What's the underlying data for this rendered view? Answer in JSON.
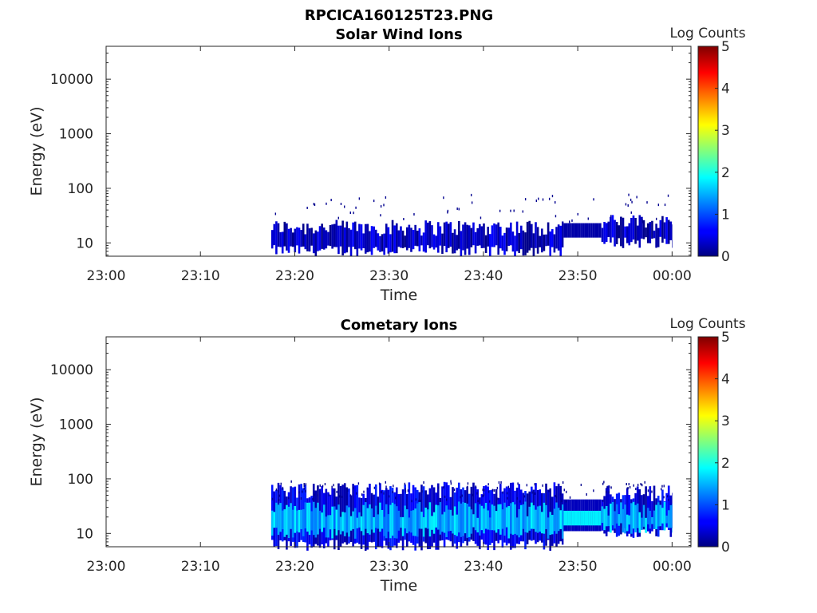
{
  "figure": {
    "title": "RPCICA160125T23.PNG"
  },
  "chart_data": [
    {
      "type": "heatmap",
      "title": "Solar Wind Ions",
      "xlabel": "Time",
      "ylabel": "Energy (eV)",
      "x_ticks": [
        "23:00",
        "23:10",
        "23:20",
        "23:30",
        "23:40",
        "23:50",
        "00:00"
      ],
      "x_range": [
        "23:00",
        "00:02"
      ],
      "y_ticks": [
        10,
        100,
        1000,
        10000
      ],
      "y_scale": "log",
      "y_range": [
        5.7,
        40000
      ],
      "colorbar": {
        "label": "Log Counts",
        "ticks": [
          0,
          1,
          2,
          3,
          4,
          5
        ],
        "range": [
          0,
          5
        ],
        "colormap": "jet"
      },
      "data_start": "23:17.5",
      "data_end": "00:00",
      "bands": [
        {
          "t_start": "23:17.5",
          "t_end": "23:48.5",
          "e_low": 7,
          "e_high": 24,
          "log_counts": 0.3
        },
        {
          "t_start": "23:48.5",
          "t_end": "23:52.5",
          "e_low": 12.5,
          "e_high": 23,
          "log_counts": 0.2
        },
        {
          "t_start": "23:52.5",
          "t_end": "00:00",
          "e_low": 10,
          "e_high": 30,
          "log_counts": 0.3
        }
      ]
    },
    {
      "type": "heatmap",
      "title": "Cometary Ions",
      "xlabel": "Time",
      "ylabel": "Energy (eV)",
      "x_ticks": [
        "23:00",
        "23:10",
        "23:20",
        "23:30",
        "23:40",
        "23:50",
        "00:00"
      ],
      "x_range": [
        "23:00",
        "00:02"
      ],
      "y_ticks": [
        10,
        100,
        1000,
        10000
      ],
      "y_scale": "log",
      "y_range": [
        5.7,
        40000
      ],
      "colorbar": {
        "label": "Log Counts",
        "ticks": [
          0,
          1,
          2,
          3,
          4,
          5
        ],
        "range": [
          0,
          5
        ],
        "colormap": "jet"
      },
      "data_start": "23:17.5",
      "data_end": "00:00",
      "bands": [
        {
          "t_start": "23:17.5",
          "t_end": "23:48.5",
          "e_low": 6,
          "e_high": 80,
          "log_counts": 0.5
        },
        {
          "t_start": "23:17.5",
          "t_end": "23:48.5",
          "e_low": 10,
          "e_high": 35,
          "log_counts": 1.5
        },
        {
          "t_start": "23:48.5",
          "t_end": "23:52.5",
          "e_low": 11,
          "e_high": 42,
          "log_counts": 0.3
        },
        {
          "t_start": "23:48.5",
          "t_end": "23:52.5",
          "e_low": 14,
          "e_high": 26,
          "log_counts": 1.8
        },
        {
          "t_start": "23:52.5",
          "t_end": "00:00",
          "e_low": 10,
          "e_high": 70,
          "log_counts": 0.5
        },
        {
          "t_start": "23:52.5",
          "t_end": "00:00",
          "e_low": 12,
          "e_high": 35,
          "log_counts": 1.5
        }
      ]
    }
  ]
}
